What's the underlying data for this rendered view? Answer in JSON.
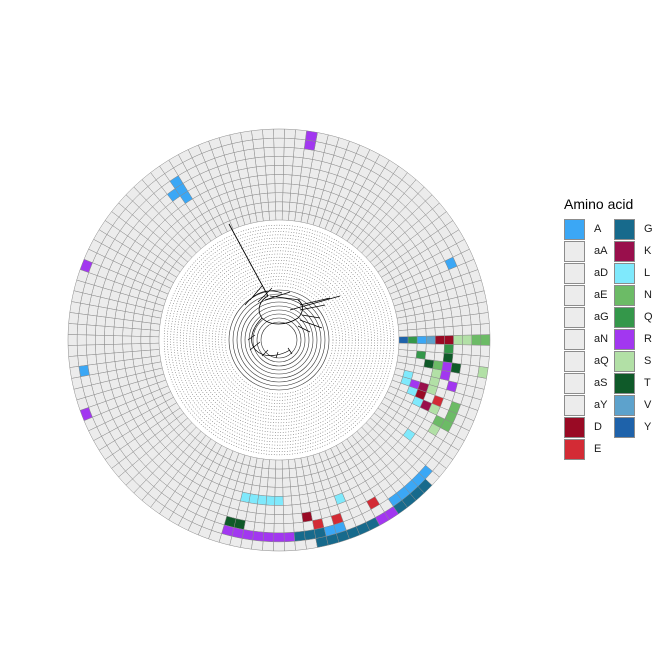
{
  "legend": {
    "title": "Amino acid",
    "col1": [
      {
        "label": "A",
        "color": "#3ba7f5"
      },
      {
        "label": "aA",
        "color": "#ececec"
      },
      {
        "label": "aD",
        "color": "#ececec"
      },
      {
        "label": "aE",
        "color": "#ececec"
      },
      {
        "label": "aG",
        "color": "#ececec"
      },
      {
        "label": "aN",
        "color": "#ececec"
      },
      {
        "label": "aQ",
        "color": "#ececec"
      },
      {
        "label": "aS",
        "color": "#ececec"
      },
      {
        "label": "aY",
        "color": "#ececec"
      },
      {
        "label": "D",
        "color": "#990a24"
      },
      {
        "label": "E",
        "color": "#d32b35"
      }
    ],
    "col2": [
      {
        "label": "G",
        "color": "#176a8c"
      },
      {
        "label": "K",
        "color": "#990f4c"
      },
      {
        "label": "L",
        "color": "#7fe9fc"
      },
      {
        "label": "N",
        "color": "#6cbb66"
      },
      {
        "label": "Q",
        "color": "#34974a"
      },
      {
        "label": "R",
        "color": "#a237f0"
      },
      {
        "label": "S",
        "color": "#b2e0a6"
      },
      {
        "label": "T",
        "color": "#0f5a29"
      },
      {
        "label": "V",
        "color": "#5da2cc"
      },
      {
        "label": "Y",
        "color": "#1e62aa"
      }
    ]
  },
  "ring_data": {
    "segments": 120,
    "rings": 10,
    "default_color": "#ececec",
    "cells": [
      {
        "ring": 9,
        "seg": 94,
        "aa": "G"
      },
      {
        "ring": 9,
        "seg": 95,
        "aa": "G"
      },
      {
        "ring": 9,
        "seg": 96,
        "aa": "G"
      },
      {
        "ring": 9,
        "seg": 97,
        "aa": "G"
      },
      {
        "ring": 9,
        "seg": 98,
        "aa": "G"
      },
      {
        "ring": 9,
        "seg": 99,
        "aa": "G"
      },
      {
        "ring": 9,
        "seg": 100,
        "aa": "R"
      },
      {
        "ring": 9,
        "seg": 101,
        "aa": "R"
      },
      {
        "ring": 9,
        "seg": 102,
        "aa": "G"
      },
      {
        "ring": 9,
        "seg": 103,
        "aa": "G"
      },
      {
        "ring": 9,
        "seg": 104,
        "aa": "G"
      },
      {
        "ring": 9,
        "seg": 105,
        "aa": "G"
      },
      {
        "ring": 8,
        "seg": 85,
        "aa": "R"
      },
      {
        "ring": 8,
        "seg": 86,
        "aa": "R"
      },
      {
        "ring": 8,
        "seg": 87,
        "aa": "R"
      },
      {
        "ring": 8,
        "seg": 88,
        "aa": "R"
      },
      {
        "ring": 8,
        "seg": 89,
        "aa": "R"
      },
      {
        "ring": 8,
        "seg": 90,
        "aa": "R"
      },
      {
        "ring": 8,
        "seg": 91,
        "aa": "R"
      },
      {
        "ring": 8,
        "seg": 92,
        "aa": "G"
      },
      {
        "ring": 8,
        "seg": 93,
        "aa": "G"
      },
      {
        "ring": 8,
        "seg": 94,
        "aa": "G"
      },
      {
        "ring": 8,
        "seg": 95,
        "aa": "A"
      },
      {
        "ring": 8,
        "seg": 96,
        "aa": "A"
      },
      {
        "ring": 8,
        "seg": 102,
        "aa": "A"
      },
      {
        "ring": 8,
        "seg": 103,
        "aa": "A"
      },
      {
        "ring": 8,
        "seg": 104,
        "aa": "A"
      },
      {
        "ring": 8,
        "seg": 105,
        "aa": "A"
      },
      {
        "ring": 8,
        "seg": 106,
        "aa": "A"
      },
      {
        "ring": 7,
        "seg": 85,
        "aa": "T"
      },
      {
        "ring": 7,
        "seg": 86,
        "aa": "T"
      },
      {
        "ring": 7,
        "seg": 94,
        "aa": "E"
      },
      {
        "ring": 7,
        "seg": 96,
        "aa": "E"
      },
      {
        "ring": 7,
        "seg": 100,
        "aa": "E"
      },
      {
        "ring": 7,
        "seg": 111,
        "aa": "N"
      },
      {
        "ring": 7,
        "seg": 112,
        "aa": "N"
      },
      {
        "ring": 7,
        "seg": 113,
        "aa": "N"
      },
      {
        "ring": 6,
        "seg": 93,
        "aa": "D"
      },
      {
        "ring": 6,
        "seg": 110,
        "aa": "S"
      },
      {
        "ring": 6,
        "seg": 111,
        "aa": "N"
      },
      {
        "ring": 6,
        "seg": 115,
        "aa": "R"
      },
      {
        "ring": 6,
        "seg": 117,
        "aa": "T"
      },
      {
        "ring": 5,
        "seg": 97,
        "aa": "L"
      },
      {
        "ring": 5,
        "seg": 112,
        "aa": "S"
      },
      {
        "ring": 5,
        "seg": 113,
        "aa": "E"
      },
      {
        "ring": 5,
        "seg": 116,
        "aa": "R"
      },
      {
        "ring": 5,
        "seg": 117,
        "aa": "R"
      },
      {
        "ring": 5,
        "seg": 118,
        "aa": "T"
      },
      {
        "ring": 5,
        "seg": 119,
        "aa": "Q"
      },
      {
        "ring": 4,
        "seg": 86,
        "aa": "L"
      },
      {
        "ring": 4,
        "seg": 87,
        "aa": "L"
      },
      {
        "ring": 4,
        "seg": 88,
        "aa": "L"
      },
      {
        "ring": 4,
        "seg": 89,
        "aa": "L"
      },
      {
        "ring": 4,
        "seg": 90,
        "aa": "L"
      },
      {
        "ring": 4,
        "seg": 108,
        "aa": "L"
      },
      {
        "ring": 4,
        "seg": 112,
        "aa": "K"
      },
      {
        "ring": 4,
        "seg": 114,
        "aa": "S"
      },
      {
        "ring": 4,
        "seg": 115,
        "aa": "S"
      },
      {
        "ring": 4,
        "seg": 116,
        "aa": "S"
      },
      {
        "ring": 4,
        "seg": 117,
        "aa": "N"
      },
      {
        "ring": 3,
        "seg": 112,
        "aa": "L"
      },
      {
        "ring": 3,
        "seg": 113,
        "aa": "D"
      },
      {
        "ring": 3,
        "seg": 114,
        "aa": "K"
      },
      {
        "ring": 3,
        "seg": 117,
        "aa": "T"
      },
      {
        "ring": 2,
        "seg": 113,
        "aa": "L"
      },
      {
        "ring": 2,
        "seg": 114,
        "aa": "R"
      },
      {
        "ring": 2,
        "seg": 118,
        "aa": "Q"
      },
      {
        "ring": 1,
        "seg": 114,
        "aa": "L"
      },
      {
        "ring": 1,
        "seg": 115,
        "aa": "L"
      },
      {
        "ring": 0,
        "seg": 0,
        "aa": "Y"
      },
      {
        "ring": 1,
        "seg": 0,
        "aa": "Q"
      },
      {
        "ring": 2,
        "seg": 0,
        "aa": "A"
      },
      {
        "ring": 3,
        "seg": 0,
        "aa": "V"
      },
      {
        "ring": 4,
        "seg": 0,
        "aa": "D"
      },
      {
        "ring": 5,
        "seg": 0,
        "aa": "D"
      },
      {
        "ring": 6,
        "seg": 0,
        "aa": "S"
      },
      {
        "ring": 7,
        "seg": 0,
        "aa": "S"
      },
      {
        "ring": 8,
        "seg": 0,
        "aa": "N"
      },
      {
        "ring": 9,
        "seg": 0,
        "aa": "N"
      },
      {
        "ring": 9,
        "seg": 67,
        "aa": "R"
      },
      {
        "ring": 8,
        "seg": 63,
        "aa": "A"
      },
      {
        "ring": 9,
        "seg": 53,
        "aa": "R"
      },
      {
        "ring": 6,
        "seg": 42,
        "aa": "A"
      },
      {
        "ring": 5,
        "seg": 41,
        "aa": "A"
      },
      {
        "ring": 6,
        "seg": 41,
        "aa": "A"
      },
      {
        "ring": 7,
        "seg": 41,
        "aa": "A"
      },
      {
        "ring": 8,
        "seg": 27,
        "aa": "R"
      },
      {
        "ring": 9,
        "seg": 27,
        "aa": "R"
      },
      {
        "ring": 7,
        "seg": 8,
        "aa": "A"
      },
      {
        "ring": 9,
        "seg": 117,
        "aa": "S"
      }
    ]
  },
  "colors": {
    "A": "#3ba7f5",
    "D": "#990a24",
    "E": "#d32b35",
    "G": "#176a8c",
    "K": "#990f4c",
    "L": "#7fe9fc",
    "N": "#6cbb66",
    "Q": "#34974a",
    "R": "#a237f0",
    "S": "#b2e0a6",
    "T": "#0f5a29",
    "V": "#5da2cc",
    "Y": "#1e62aa"
  }
}
